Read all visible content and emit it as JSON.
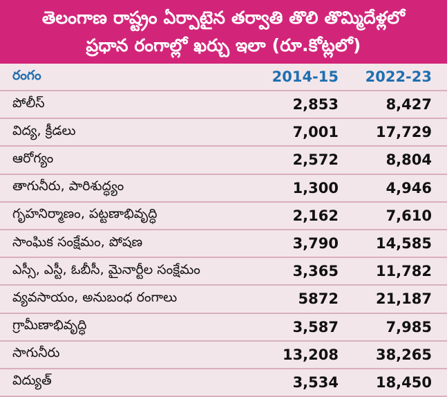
{
  "title": {
    "line1": "తెలంగాణ రాష్ట్రం ఏర్పాటైన తర్వాతి తొలి తొమ్మిదేళ్లలో",
    "line2": "ప్రధాన రంగాల్లో ఖర్చు ఇలా (రూ.కోట్లలో)"
  },
  "header": {
    "sector": "రంగం",
    "year1": "2014-15",
    "year2": "2022-23"
  },
  "colors": {
    "title_bg": "#d2257a",
    "header_text": "#1e6fb0",
    "body_bg": "#f3e6ea"
  },
  "rows": [
    {
      "sector": "పోలీస్",
      "y2014": "2,853",
      "y2022": "8,427"
    },
    {
      "sector": "విద్య, క్రీడలు",
      "y2014": "7,001",
      "y2022": "17,729"
    },
    {
      "sector": "ఆరోగ్యం",
      "y2014": "2,572",
      "y2022": "8,804"
    },
    {
      "sector": "తాగునీరు, పారిశుద్ధ్యం",
      "y2014": "1,300",
      "y2022": "4,946"
    },
    {
      "sector": "గృహనిర్మాణం, పట్టణాభివృద్ధి",
      "y2014": "2,162",
      "y2022": "7,610"
    },
    {
      "sector": "సాంఘిక సంక్షేమం, పోషణ",
      "y2014": "3,790",
      "y2022": "14,585"
    },
    {
      "sector": "ఎస్సీ, ఎస్టీ, ఓబీసీ, మైనార్టీల సంక్షేమం",
      "y2014": "3,365",
      "y2022": "11,782"
    },
    {
      "sector": "వ్యవసాయం, అనుబంధ రంగాలు",
      "y2014": "5872",
      "y2022": "21,187"
    },
    {
      "sector": "గ్రామీణాభివృద్ధి",
      "y2014": "3,587",
      "y2022": "7,985"
    },
    {
      "sector": "సాగునీరు",
      "y2014": "13,208",
      "y2022": "38,265"
    },
    {
      "sector": "విద్యుత్",
      "y2014": "3,534",
      "y2022": "18,450"
    }
  ]
}
